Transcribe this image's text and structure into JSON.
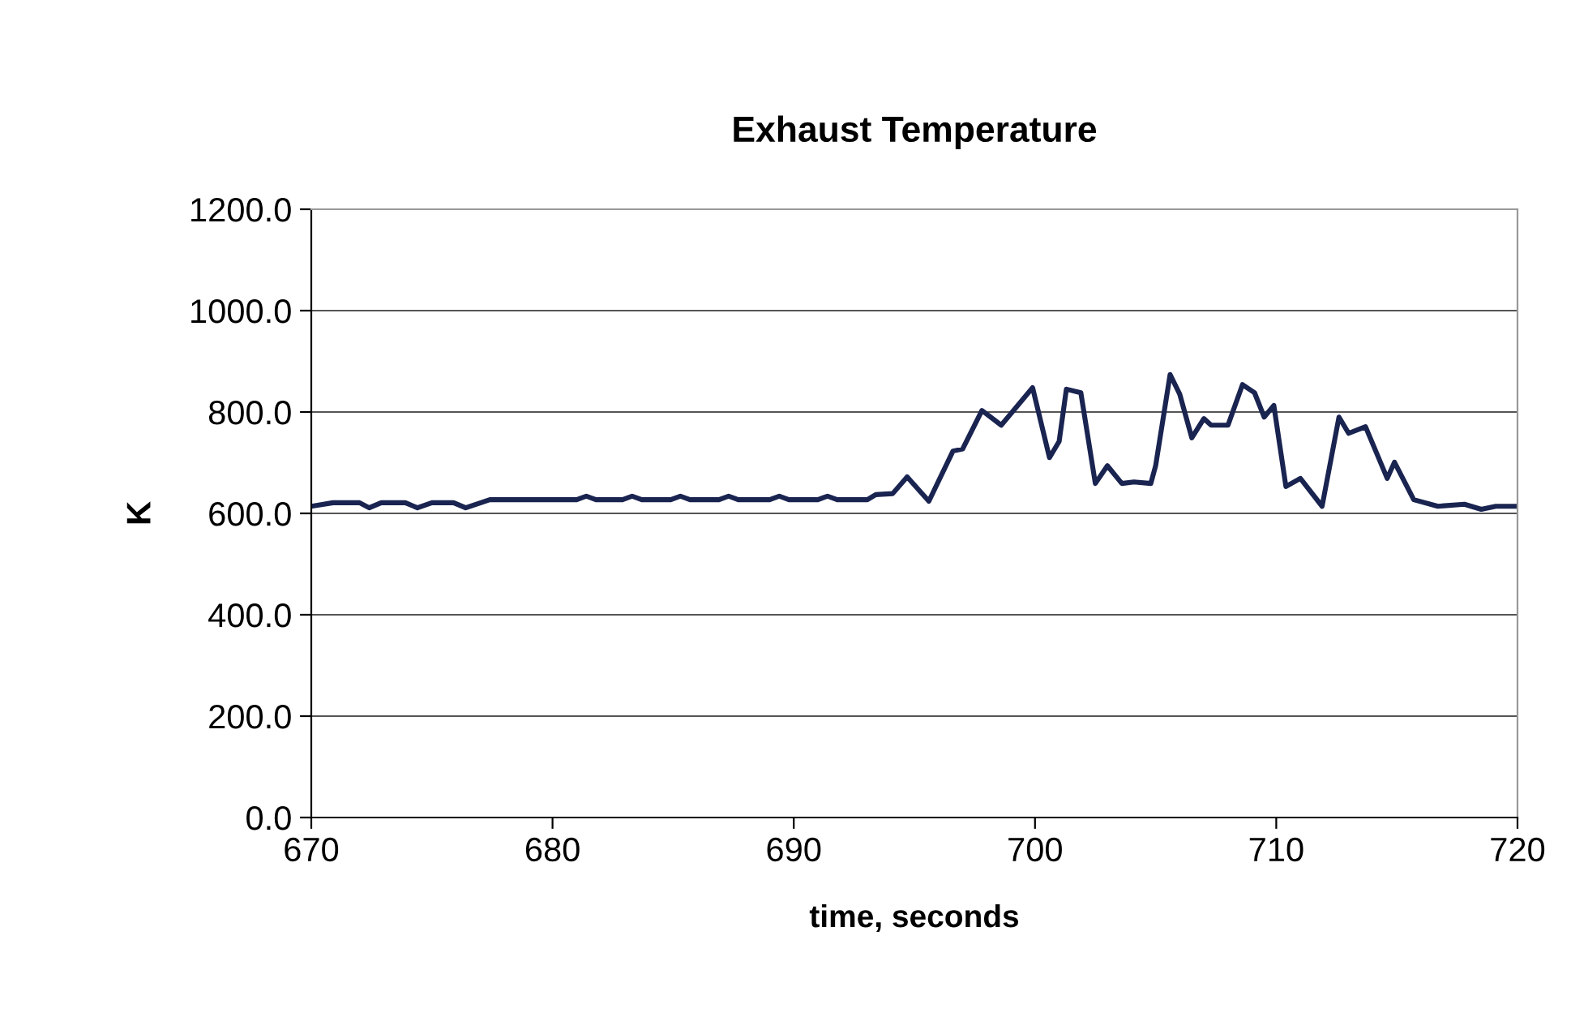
{
  "chart_data": {
    "type": "line",
    "title": "Exhaust Temperature",
    "xlabel": "time, seconds",
    "ylabel": "K",
    "xlim": [
      670,
      720
    ],
    "xticks": [
      670,
      680,
      690,
      700,
      710,
      720
    ],
    "ylim": [
      0,
      1200
    ],
    "yticks": [
      {
        "value": 0,
        "label": "0.0"
      },
      {
        "value": 200,
        "label": "200.0"
      },
      {
        "value": 400,
        "label": "400.0"
      },
      {
        "value": 600,
        "label": "600.0"
      },
      {
        "value": 800,
        "label": "800.0"
      },
      {
        "value": 1000,
        "label": "1000.0"
      },
      {
        "value": 1200,
        "label": "1200.0"
      }
    ],
    "grid": "y",
    "marker": "none",
    "line_style": "solid",
    "series": [
      {
        "color": "#1a2450",
        "x": [
          670,
          670.9,
          672,
          672.4,
          672.9,
          673.9,
          674.4,
          675,
          675.9,
          676.4,
          677.4,
          681,
          681.4,
          681.8,
          682.9,
          683.3,
          683.7,
          684.9,
          685.3,
          685.7,
          686.9,
          687.3,
          687.7,
          689,
          689.4,
          689.8,
          691,
          691.4,
          691.8,
          693.05,
          693.4,
          694.1,
          694.7,
          695.6,
          696.6,
          697.0,
          697.8,
          698.6,
          699.9,
          700.6,
          701.0,
          701.3,
          701.9,
          702.5,
          703.0,
          703.6,
          704.1,
          704.8,
          705.0,
          705.6,
          706.0,
          706.5,
          707.0,
          707.3,
          708.0,
          708.6,
          709.1,
          709.5,
          709.9,
          710.4,
          711.0,
          711.9,
          712.6,
          713.0,
          713.7,
          714.6,
          714.9,
          715.7,
          716.7,
          717.8,
          718.5,
          719.1,
          720
        ],
        "values": [
          614,
          621,
          621,
          611,
          621,
          621,
          611,
          621,
          621,
          611,
          627,
          627,
          634,
          627,
          627,
          634,
          627,
          627,
          634,
          627,
          627,
          634,
          627,
          627,
          634,
          627,
          627,
          634,
          627,
          627,
          637,
          639,
          672,
          624,
          723,
          727,
          803,
          774,
          848,
          710,
          742,
          845,
          838,
          659,
          694,
          659,
          662,
          659,
          694,
          874,
          835,
          749,
          787,
          774,
          774,
          854,
          838,
          790,
          813,
          653,
          669,
          614,
          790,
          758,
          771,
          669,
          701,
          627,
          614,
          618,
          608,
          614,
          614
        ]
      }
    ]
  }
}
